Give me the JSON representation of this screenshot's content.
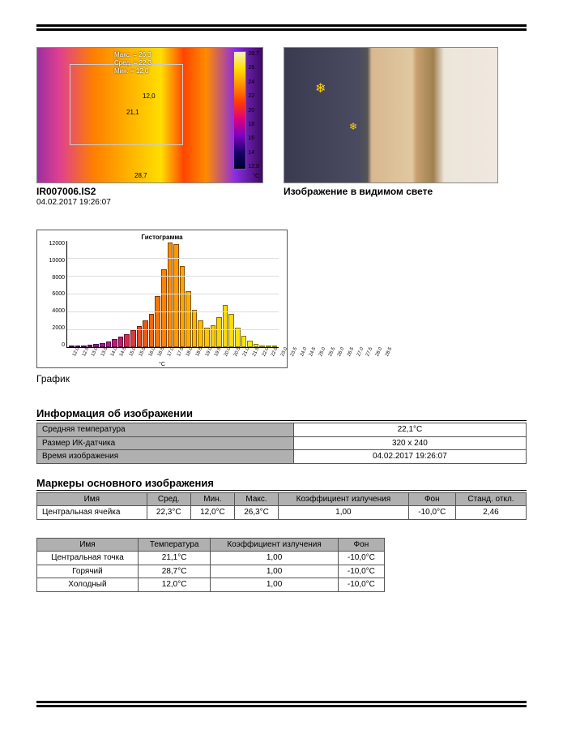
{
  "thermal": {
    "filename": "IR007006.IS2",
    "timestamp": "04.02.2017 19:26:07",
    "overlay": {
      "max_label": "Макс. = 26,3",
      "avg_label": "Сред. = 22,3",
      "min_label": "Мин. = 12,0",
      "min_point": "12,0",
      "center_point": "21,1",
      "hot_point": "28,7"
    },
    "scale": {
      "max": "28.7",
      "ticks": [
        "28.7",
        "26",
        "24",
        "22",
        "20",
        "18",
        "16",
        "14",
        "12.0"
      ],
      "unit": "°C"
    }
  },
  "visible": {
    "caption": "Изображение в видимом свете"
  },
  "histogram": {
    "title": "Гистограмма",
    "type": "bar",
    "xunit": "°C",
    "ylim": [
      0,
      12000
    ],
    "yticks": [
      "12000",
      "10000",
      "8000",
      "6000",
      "4000",
      "2000",
      "0"
    ],
    "xlabels": [
      "12.0",
      "12.5",
      "13.0",
      "13.5",
      "14.0",
      "14.5",
      "15.0",
      "15.5",
      "16.0",
      "16.5",
      "17.0",
      "17.5",
      "18.0",
      "18.5",
      "19.0",
      "19.5",
      "20.0",
      "20.5",
      "21.0",
      "21.5",
      "22.0",
      "22.5",
      "23.0",
      "23.5",
      "24.0",
      "24.5",
      "25.0",
      "25.5",
      "26.0",
      "26.5",
      "27.0",
      "27.5",
      "28.0",
      "28.5"
    ],
    "bars": [
      {
        "v": 28,
        "c": "#6d1a7a"
      },
      {
        "v": 60,
        "c": "#6d1a7a"
      },
      {
        "v": 120,
        "c": "#7a1a80"
      },
      {
        "v": 240,
        "c": "#881a86"
      },
      {
        "v": 360,
        "c": "#951a8c"
      },
      {
        "v": 500,
        "c": "#a21a8f"
      },
      {
        "v": 650,
        "c": "#b01a8a"
      },
      {
        "v": 900,
        "c": "#bd1a80"
      },
      {
        "v": 1200,
        "c": "#c91a70"
      },
      {
        "v": 1500,
        "c": "#d42b55"
      },
      {
        "v": 1900,
        "c": "#de3b3b"
      },
      {
        "v": 2400,
        "c": "#e74b22"
      },
      {
        "v": 3000,
        "c": "#ee5a12"
      },
      {
        "v": 3800,
        "c": "#f46808"
      },
      {
        "v": 5800,
        "c": "#f87604"
      },
      {
        "v": 8800,
        "c": "#fb8202"
      },
      {
        "v": 11800,
        "c": "#fd8e01"
      },
      {
        "v": 11600,
        "c": "#fe9900"
      },
      {
        "v": 9200,
        "c": "#ffa300"
      },
      {
        "v": 6300,
        "c": "#ffac00"
      },
      {
        "v": 4200,
        "c": "#ffb500"
      },
      {
        "v": 3000,
        "c": "#ffbd00"
      },
      {
        "v": 2200,
        "c": "#ffc500"
      },
      {
        "v": 2500,
        "c": "#ffcc00"
      },
      {
        "v": 3400,
        "c": "#ffd200"
      },
      {
        "v": 4800,
        "c": "#ffd800"
      },
      {
        "v": 3800,
        "c": "#ffde00"
      },
      {
        "v": 2200,
        "c": "#ffe300"
      },
      {
        "v": 1300,
        "c": "#ffe700"
      },
      {
        "v": 700,
        "c": "#ffeb00"
      },
      {
        "v": 350,
        "c": "#ffee00"
      },
      {
        "v": 160,
        "c": "#fff100"
      },
      {
        "v": 70,
        "c": "#fff400"
      },
      {
        "v": 25,
        "c": "#fff700"
      }
    ],
    "caption": "График"
  },
  "info": {
    "heading": "Информация об изображении",
    "rows": [
      {
        "label": "Средняя температура",
        "value": "22,1°C"
      },
      {
        "label": "Размер ИК-датчика",
        "value": "320 x 240"
      },
      {
        "label": "Время изображения",
        "value": "04.02.2017 19:26:07"
      }
    ]
  },
  "markers": {
    "heading": "Маркеры основного изображения",
    "columns": [
      "Имя",
      "Сред.",
      "Мин.",
      "Макс.",
      "Коэффициент излучения",
      "Фон",
      "Станд. откл."
    ],
    "rows": [
      [
        "Центральная ячейка",
        "22,3°C",
        "12,0°C",
        "26,3°C",
        "1,00",
        "-10,0°C",
        "2,46"
      ]
    ]
  },
  "points": {
    "columns": [
      "Имя",
      "Температура",
      "Коэффициент излучения",
      "Фон"
    ],
    "rows": [
      [
        "Центральная точка",
        "21,1°C",
        "1,00",
        "-10,0°C"
      ],
      [
        "Горячий",
        "28,7°C",
        "1,00",
        "-10,0°C"
      ],
      [
        "Холодный",
        "12,0°C",
        "1,00",
        "-10,0°C"
      ]
    ]
  }
}
